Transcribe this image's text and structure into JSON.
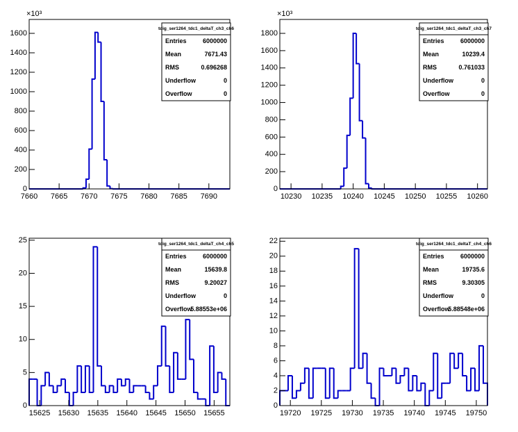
{
  "chart_data": [
    {
      "type": "histogram",
      "title": "tdig_ser1264_tdc1_deltaT_ch3_ch6",
      "exponent_label": "×10³",
      "color": "#0000cc",
      "bins": [
        7660,
        7669,
        7669.5,
        7670,
        7670.5,
        7671,
        7671.5,
        7672,
        7672.5,
        7673,
        7673.5,
        7674,
        7693.5
      ],
      "values": [
        0,
        10,
        100,
        410,
        1130,
        1610,
        1510,
        900,
        300,
        30,
        3,
        0
      ],
      "xlim": [
        7660,
        7693.5
      ],
      "xticks": [
        7660,
        7665,
        7670,
        7675,
        7680,
        7685,
        7690
      ],
      "ylim": [
        0,
        1743
      ],
      "yticks": [
        0,
        200,
        400,
        600,
        800,
        1000,
        1200,
        1400,
        1600
      ],
      "stats": [
        [
          "Entries",
          "6000000"
        ],
        [
          "Mean",
          "7671.43"
        ],
        [
          "RMS",
          "0.696268"
        ],
        [
          "Underflow",
          "0"
        ],
        [
          "Overflow",
          "0"
        ]
      ]
    },
    {
      "type": "histogram",
      "title": "tdig_ser1264_tdc1_deltaT_ch3_ch7",
      "exponent_label": "×10³",
      "color": "#0000cc",
      "bins": [
        10228.2,
        10238,
        10238.5,
        10239,
        10239.5,
        10240,
        10240.5,
        10241,
        10241.5,
        10242,
        10242.5,
        10243,
        10261.6
      ],
      "values": [
        0,
        30,
        240,
        620,
        1050,
        1800,
        1450,
        790,
        590,
        60,
        10,
        0
      ],
      "xlim": [
        10228.2,
        10261.6
      ],
      "xticks": [
        10230,
        10235,
        10240,
        10245,
        10250,
        10255,
        10260
      ],
      "ylim": [
        0,
        1961
      ],
      "yticks": [
        0,
        200,
        400,
        600,
        800,
        1000,
        1200,
        1400,
        1600,
        1800
      ],
      "stats": [
        [
          "Entries",
          "6000000"
        ],
        [
          "Mean",
          "10239.4"
        ],
        [
          "RMS",
          "0.761033"
        ],
        [
          "Underflow",
          "0"
        ],
        [
          "Overflow",
          "0"
        ]
      ]
    },
    {
      "type": "histogram",
      "title": "tdig_ser1264_tdc1_deltaT_ch4_ch5",
      "color": "#0000cc",
      "bins": [
        15623.2,
        15623.89,
        15624.58,
        15625.27,
        15625.96,
        15626.65,
        15627.34,
        15628.03,
        15628.72,
        15629.41,
        15630.1,
        15630.79,
        15631.48,
        15632.17,
        15632.86,
        15633.55,
        15634.24,
        15634.93,
        15635.62,
        15636.31,
        15637,
        15637.69,
        15638.38,
        15639.07,
        15639.76,
        15640.45,
        15641.14,
        15641.83,
        15642.52,
        15643.21,
        15643.9,
        15644.59,
        15645.28,
        15645.97,
        15646.66,
        15647.35,
        15648.04,
        15648.73,
        15649.42,
        15650.11,
        15650.8,
        15651.49,
        15652.18,
        15652.87,
        15653.56,
        15654.25,
        15654.94,
        15655.63,
        15656.32,
        15657.01,
        15657.7
      ],
      "values": [
        4,
        4,
        0,
        3,
        5,
        3,
        2,
        3,
        4,
        2,
        0,
        2,
        6,
        2,
        6,
        2,
        24,
        6,
        3,
        2,
        3,
        2,
        4,
        3,
        4,
        2,
        3,
        3,
        3,
        2,
        1,
        3,
        6,
        12,
        6,
        2,
        8,
        4,
        4,
        13,
        7,
        2,
        1,
        1,
        0,
        9,
        2,
        5,
        4,
        0
      ],
      "xlim": [
        15623.2,
        15657.7
      ],
      "xticks": [
        15625,
        15630,
        15635,
        15640,
        15645,
        15650,
        15655
      ],
      "ylim": [
        0,
        25.3
      ],
      "yticks": [
        0,
        5,
        10,
        15,
        20,
        25
      ],
      "stats": [
        [
          "Entries",
          "6000000"
        ],
        [
          "Mean",
          "15639.8"
        ],
        [
          "RMS",
          "9.20027"
        ],
        [
          "Underflow",
          "0"
        ],
        [
          "Overflow",
          "5.88553e+06"
        ]
      ]
    },
    {
      "type": "histogram",
      "title": "tdig_ser1264_tdc1_deltaT_ch4_ch6",
      "color": "#0000cc",
      "bins": [
        19718.3,
        19718.97,
        19719.64,
        19720.31,
        19720.98,
        19721.65,
        19722.32,
        19722.99,
        19723.66,
        19724.33,
        19725,
        19725.67,
        19726.34,
        19727.01,
        19727.68,
        19728.35,
        19729.02,
        19729.69,
        19730.36,
        19731.03,
        19731.7,
        19732.37,
        19733.04,
        19733.71,
        19734.38,
        19735.05,
        19735.72,
        19736.39,
        19737.06,
        19737.73,
        19738.4,
        19739.07,
        19739.74,
        19740.41,
        19741.08,
        19741.75,
        19742.42,
        19743.09,
        19743.76,
        19744.43,
        19745.1,
        19745.77,
        19746.44,
        19747.11,
        19747.78,
        19748.45,
        19749.12,
        19749.79,
        19750.46,
        19751.13,
        19751.8
      ],
      "values": [
        2,
        2,
        4,
        1,
        2,
        3,
        5,
        1,
        5,
        5,
        5,
        1,
        5,
        1,
        2,
        2,
        2,
        5,
        21,
        5,
        7,
        3,
        1,
        0,
        5,
        4,
        4,
        5,
        3,
        4,
        5,
        2,
        4,
        2,
        3,
        0,
        2,
        7,
        1,
        3,
        3,
        7,
        5,
        7,
        4,
        2,
        5,
        2,
        8,
        3
      ],
      "xlim": [
        19718.3,
        19751.8
      ],
      "xticks": [
        19720,
        19725,
        19730,
        19735,
        19740,
        19745,
        19750
      ],
      "ylim": [
        0,
        22.4
      ],
      "yticks": [
        0,
        2,
        4,
        6,
        8,
        10,
        12,
        14,
        16,
        18,
        20,
        22
      ],
      "stats": [
        [
          "Entries",
          "6000000"
        ],
        [
          "Mean",
          "19735.6"
        ],
        [
          "RMS",
          "9.30305"
        ],
        [
          "Underflow",
          "0"
        ],
        [
          "Overflow",
          "5.88548e+06"
        ]
      ]
    }
  ]
}
